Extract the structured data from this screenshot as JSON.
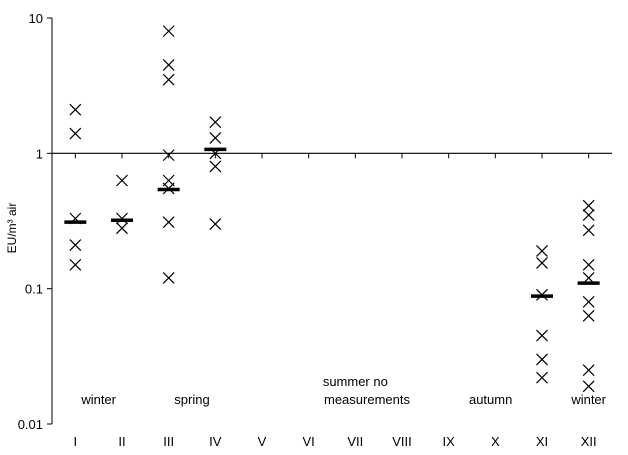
{
  "chart_data": {
    "type": "scatter",
    "ylabel": "EU/m³ air",
    "yscale": "log",
    "ylim": [
      0.01,
      10
    ],
    "yticks": [
      {
        "value": 0.01,
        "label": "0.01"
      },
      {
        "value": 0.1,
        "label": "0.1"
      },
      {
        "value": 1,
        "label": "1"
      },
      {
        "value": 10,
        "label": "10"
      }
    ],
    "categories": [
      "I",
      "II",
      "III",
      "IV",
      "V",
      "VI",
      "VII",
      "VIII",
      "IX",
      "X",
      "XI",
      "XII"
    ],
    "reference_line": 1,
    "points": [
      {
        "x": "I",
        "y": 2.1
      },
      {
        "x": "I",
        "y": 1.4
      },
      {
        "x": "I",
        "y": 0.33
      },
      {
        "x": "I",
        "y": 0.21
      },
      {
        "x": "I",
        "y": 0.15
      },
      {
        "x": "II",
        "y": 0.63
      },
      {
        "x": "II",
        "y": 0.33
      },
      {
        "x": "II",
        "y": 0.28
      },
      {
        "x": "III",
        "y": 8.0
      },
      {
        "x": "III",
        "y": 4.5
      },
      {
        "x": "III",
        "y": 3.5
      },
      {
        "x": "III",
        "y": 0.97
      },
      {
        "x": "III",
        "y": 0.63
      },
      {
        "x": "III",
        "y": 0.55
      },
      {
        "x": "III",
        "y": 0.31
      },
      {
        "x": "III",
        "y": 0.12
      },
      {
        "x": "IV",
        "y": 1.7
      },
      {
        "x": "IV",
        "y": 1.3
      },
      {
        "x": "IV",
        "y": 1.0
      },
      {
        "x": "IV",
        "y": 0.8
      },
      {
        "x": "IV",
        "y": 0.3
      },
      {
        "x": "XI",
        "y": 0.19
      },
      {
        "x": "XI",
        "y": 0.155
      },
      {
        "x": "XI",
        "y": 0.09
      },
      {
        "x": "XI",
        "y": 0.045
      },
      {
        "x": "XI",
        "y": 0.03
      },
      {
        "x": "XI",
        "y": 0.022
      },
      {
        "x": "XII",
        "y": 0.41
      },
      {
        "x": "XII",
        "y": 0.35
      },
      {
        "x": "XII",
        "y": 0.27
      },
      {
        "x": "XII",
        "y": 0.15
      },
      {
        "x": "XII",
        "y": 0.12
      },
      {
        "x": "XII",
        "y": 0.08
      },
      {
        "x": "XII",
        "y": 0.063
      },
      {
        "x": "XII",
        "y": 0.025
      },
      {
        "x": "XII",
        "y": 0.019
      }
    ],
    "medians": [
      {
        "x": "I",
        "y": 0.31
      },
      {
        "x": "II",
        "y": 0.32
      },
      {
        "x": "III",
        "y": 0.54
      },
      {
        "x": "IV",
        "y": 1.07
      },
      {
        "x": "XI",
        "y": 0.088
      },
      {
        "x": "XII",
        "y": 0.11
      }
    ],
    "annotations": [
      {
        "text": "winter",
        "center": 1.5,
        "y": 0.015
      },
      {
        "text": "spring",
        "center": 3.5,
        "y": 0.015
      },
      {
        "text": "summer no",
        "center": 7.0,
        "y": 0.0205
      },
      {
        "text": "measurements",
        "center": 7.25,
        "y": 0.015
      },
      {
        "text": "autumn",
        "center": 9.9,
        "y": 0.015
      },
      {
        "text": "winter",
        "center": 12.0,
        "y": 0.015
      }
    ]
  }
}
